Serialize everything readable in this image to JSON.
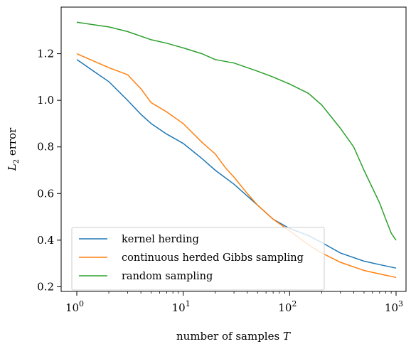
{
  "chart_data": {
    "type": "line",
    "title": "",
    "xlabel": "number of samples",
    "xlabel_var": "T",
    "ylabel": "error",
    "ylabel_var": "L",
    "ylabel_sub": "2",
    "xscale": "log",
    "xlim": [
      1,
      1000
    ],
    "ylim": [
      0.18,
      1.4
    ],
    "x_ticks": [
      {
        "value": 1,
        "base": "10",
        "exp": "0"
      },
      {
        "value": 10,
        "base": "10",
        "exp": "1"
      },
      {
        "value": 100,
        "base": "10",
        "exp": "2"
      },
      {
        "value": 1000,
        "base": "10",
        "exp": "3"
      }
    ],
    "y_ticks": [
      {
        "value": 0.2,
        "label": "0.2"
      },
      {
        "value": 0.4,
        "label": "0.4"
      },
      {
        "value": 0.6,
        "label": "0.6"
      },
      {
        "value": 0.8,
        "label": "0.8"
      },
      {
        "value": 1.0,
        "label": "1.0"
      },
      {
        "value": 1.2,
        "label": "1.2"
      }
    ],
    "grid": false,
    "legend_position": "bottom-left",
    "series": [
      {
        "name": "kernel herding",
        "color": "#1f77b4",
        "x": [
          1,
          2,
          3,
          4,
          5,
          7,
          10,
          15,
          20,
          30,
          50,
          70,
          100,
          150,
          200,
          300,
          500,
          700,
          1000
        ],
        "y": [
          1.175,
          1.08,
          1.0,
          0.94,
          0.9,
          0.855,
          0.815,
          0.75,
          0.7,
          0.64,
          0.55,
          0.49,
          0.45,
          0.42,
          0.39,
          0.345,
          0.31,
          0.295,
          0.28
        ]
      },
      {
        "name": "continuous herded Gibbs sampling",
        "color": "#ff7f0e",
        "x": [
          1,
          2,
          3,
          4,
          5,
          7,
          10,
          15,
          20,
          25,
          30,
          40,
          50,
          70,
          100,
          150,
          200,
          300,
          500,
          700,
          1000
        ],
        "y": [
          1.2,
          1.14,
          1.11,
          1.05,
          0.99,
          0.95,
          0.9,
          0.82,
          0.77,
          0.71,
          0.67,
          0.6,
          0.55,
          0.49,
          0.44,
          0.38,
          0.345,
          0.305,
          0.27,
          0.255,
          0.24
        ]
      },
      {
        "name": "random sampling",
        "color": "#2ca02c",
        "x": [
          1,
          2,
          3,
          5,
          7,
          10,
          15,
          20,
          30,
          50,
          70,
          100,
          150,
          200,
          300,
          400,
          500,
          700,
          800,
          900,
          1000
        ],
        "y": [
          1.335,
          1.315,
          1.295,
          1.26,
          1.245,
          1.225,
          1.2,
          1.175,
          1.16,
          1.125,
          1.1,
          1.07,
          1.03,
          0.98,
          0.88,
          0.8,
          0.7,
          0.56,
          0.49,
          0.43,
          0.4
        ]
      }
    ]
  }
}
